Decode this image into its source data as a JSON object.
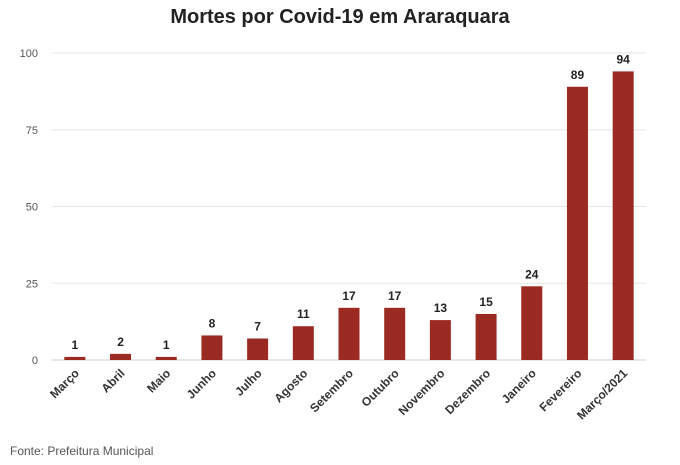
{
  "title": "Mortes por Covid-19 em Araraquara",
  "source": "Fonte: Prefeitura Municipal",
  "colors": {
    "bar": "#9b2a22",
    "grid": "#e6e6e6",
    "axis_text": "#555555",
    "label_text": "#222222"
  },
  "chart_data": {
    "type": "bar",
    "title": "Mortes por Covid-19 em Araraquara",
    "xlabel": "",
    "ylabel": "",
    "ylim": [
      0,
      100
    ],
    "yticks": [
      0,
      25,
      50,
      75,
      100
    ],
    "grid": true,
    "categories": [
      "Março",
      "Abril",
      "Maio",
      "Junho",
      "Julho",
      "Agosto",
      "Setembro",
      "Outubro",
      "Novembro",
      "Dezembro",
      "Janeiro",
      "Fevereiro",
      "Março/2021"
    ],
    "values": [
      1,
      2,
      1,
      8,
      7,
      11,
      17,
      17,
      13,
      15,
      24,
      89,
      94
    ]
  }
}
